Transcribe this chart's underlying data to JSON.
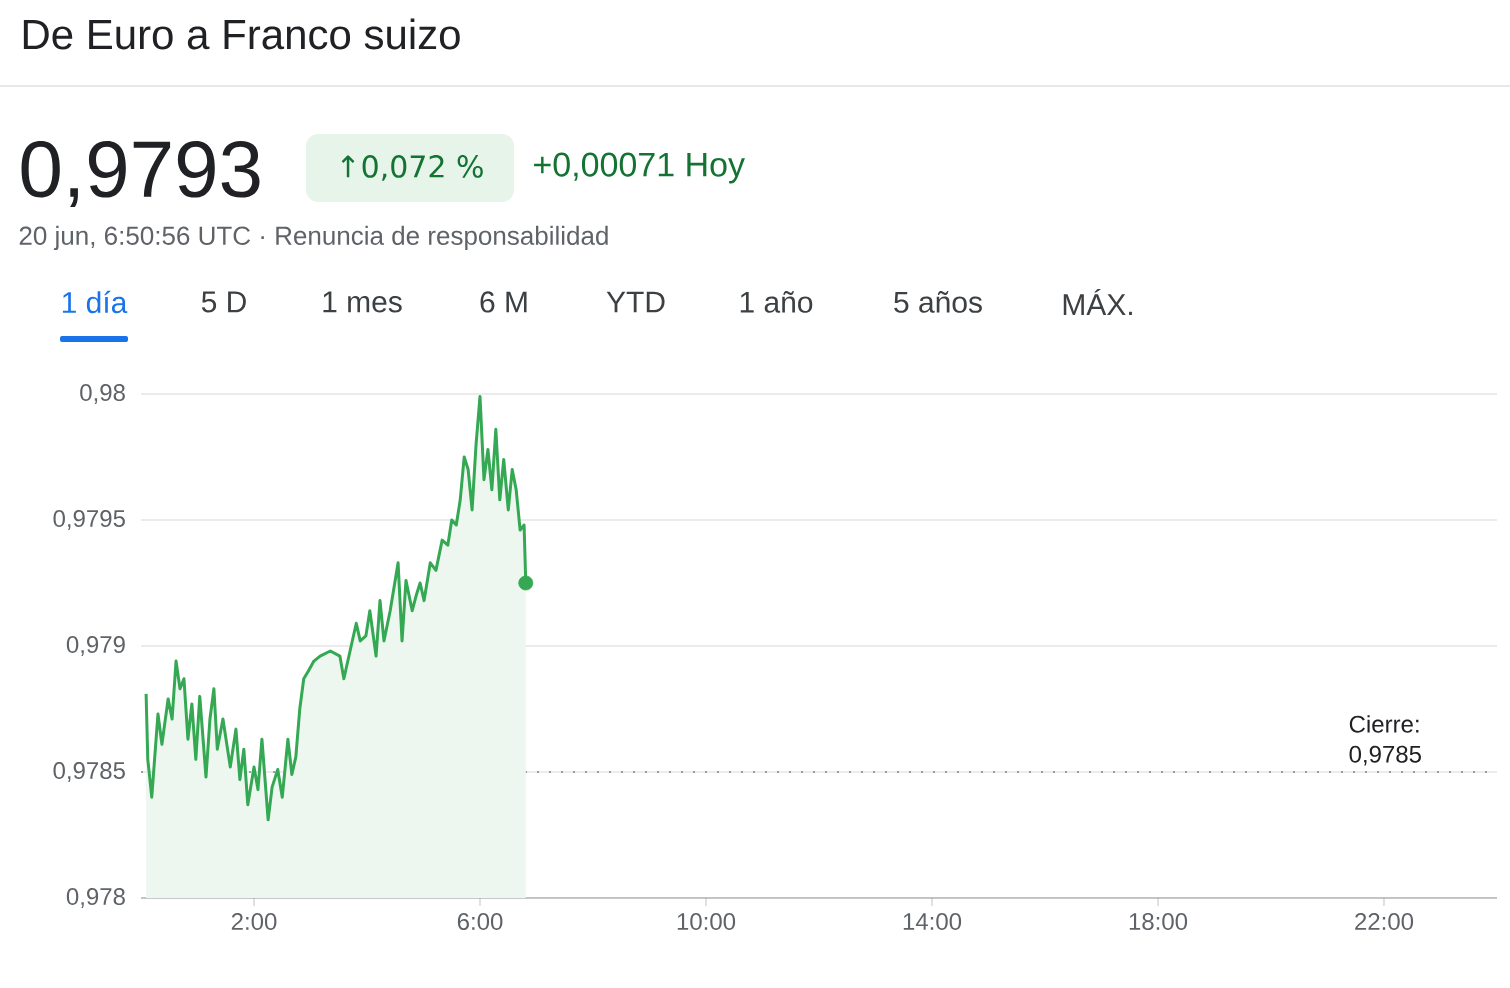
{
  "chart_data": {
    "type": "area",
    "title": "De Euro a Franco suizo",
    "subtitle": "0,9793",
    "annotations": [
      "↑0,072 %",
      "+0,00071 Hoy",
      "20 jun, 6:50:56 UTC · Renuncia de responsabilidad",
      "1 día",
      "5 D",
      "1 mes",
      "6 M",
      "YTD",
      "1 año",
      "5 años",
      "MÁX."
    ],
    "series": [
      {
        "color": "#34a853",
        "x": [
          0.09,
          0.12,
          0.19,
          0.3,
          0.37,
          0.48,
          0.55,
          0.62,
          0.69,
          0.76,
          0.83,
          0.9,
          0.97,
          1.04,
          1.15,
          1.22,
          1.29,
          1.35,
          1.45,
          1.58,
          1.68,
          1.75,
          1.82,
          1.89,
          2.0,
          2.07,
          2.14,
          2.25,
          2.32,
          2.42,
          2.5,
          2.6,
          2.67,
          2.74,
          2.81,
          2.88,
          2.96,
          3.06,
          3.17,
          3.35,
          3.52,
          3.59,
          3.7,
          3.81,
          3.88,
          3.98,
          4.05,
          4.16,
          4.23,
          4.3,
          4.41,
          4.55,
          4.62,
          4.69,
          4.8,
          4.87,
          4.94,
          5.01,
          5.12,
          5.22,
          5.33,
          5.43,
          5.5,
          5.58,
          5.65,
          5.72,
          5.79,
          5.86,
          5.93,
          6.0,
          6.07,
          6.14,
          6.21,
          6.28,
          6.35,
          6.42,
          6.5,
          6.57,
          6.64,
          6.71,
          6.78,
          6.81
        ],
        "values": [
          0.97881,
          0.97855,
          0.9784,
          0.97873,
          0.97861,
          0.97879,
          0.97871,
          0.97894,
          0.97883,
          0.97887,
          0.97863,
          0.97877,
          0.97855,
          0.9788,
          0.97848,
          0.97871,
          0.97883,
          0.97859,
          0.97871,
          0.97852,
          0.97867,
          0.97847,
          0.97859,
          0.97837,
          0.97852,
          0.97843,
          0.97863,
          0.97831,
          0.97844,
          0.97851,
          0.9784,
          0.97863,
          0.97849,
          0.97856,
          0.97875,
          0.97887,
          0.9789,
          0.97894,
          0.97896,
          0.97898,
          0.97896,
          0.97887,
          0.97898,
          0.97909,
          0.97902,
          0.97904,
          0.97914,
          0.97896,
          0.97918,
          0.97902,
          0.97914,
          0.97933,
          0.97902,
          0.97926,
          0.97914,
          0.9792,
          0.97925,
          0.97918,
          0.97933,
          0.9793,
          0.97942,
          0.9794,
          0.9795,
          0.97948,
          0.97958,
          0.97975,
          0.9797,
          0.97954,
          0.9798,
          0.97999,
          0.97966,
          0.97978,
          0.97962,
          0.97986,
          0.97958,
          0.97974,
          0.97954,
          0.9797,
          0.97962,
          0.97946,
          0.97948,
          0.97925
        ]
      },
      {
        "type": "scatter",
        "color": "#34a853",
        "marker": "circle",
        "x": [
          6.81
        ],
        "values": [
          0.97925
        ]
      }
    ],
    "xlim": [
      0,
      24
    ],
    "ylim": [
      0.978,
      0.98
    ],
    "xticks": [
      {
        "value": 2,
        "label": "2:00"
      },
      {
        "value": 6,
        "label": "6:00"
      },
      {
        "value": 10,
        "label": "10:00"
      },
      {
        "value": 14,
        "label": "14:00"
      },
      {
        "value": 18,
        "label": "18:00"
      },
      {
        "value": 22,
        "label": "22:00"
      }
    ],
    "yticks": [
      {
        "value": 0.978,
        "label": "0,978"
      },
      {
        "value": 0.9785,
        "label": "0,9785"
      },
      {
        "value": 0.979,
        "label": "0,979"
      },
      {
        "value": 0.9795,
        "label": "0,9795"
      },
      {
        "value": 0.98,
        "label": "0,98"
      }
    ],
    "grid": "y",
    "ref_lines": [
      {
        "axis": "y",
        "value": 0.9785,
        "label": "Cierre: 0,9785",
        "color": "#9aa0a6",
        "line_style": "dotted"
      }
    ]
  }
}
